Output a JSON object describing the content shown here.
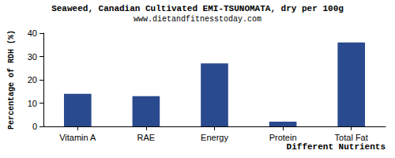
{
  "chart_data": {
    "type": "bar",
    "title": "Seaweed, Canadian Cultivated EMI-TSUNOMATA, dry per 100g",
    "subtitle": "www.dietandfitnesstoday.com",
    "x_label": "Different Nutrients",
    "y_label": "Percentage of RDH (%)",
    "categories": [
      "Vitamin A",
      "RAE",
      "Energy",
      "Protein",
      "Total Fat"
    ],
    "values": [
      14,
      13,
      27,
      2,
      36
    ],
    "color": "#2a4a8f",
    "ylim": [
      0,
      40
    ],
    "yticks": [
      0,
      10,
      20,
      30,
      40
    ],
    "grid": false
  }
}
